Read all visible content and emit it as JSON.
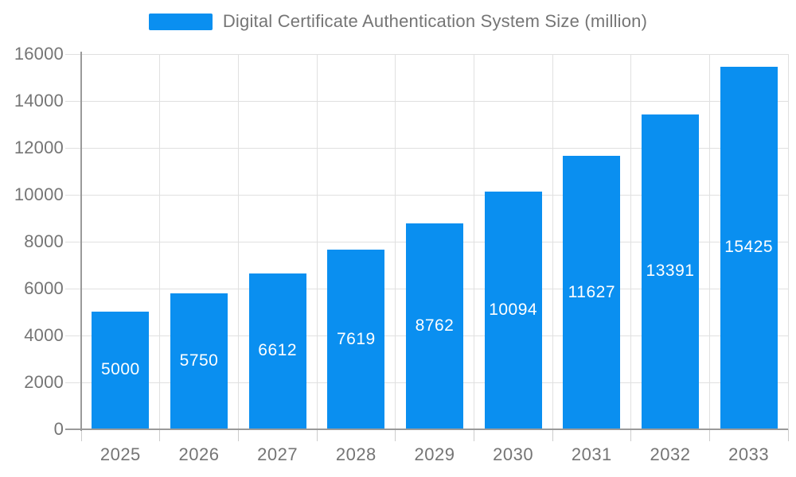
{
  "chart_data": {
    "type": "bar",
    "title": "Digital Certificate Authentication System Size (million)",
    "categories": [
      "2025",
      "2026",
      "2027",
      "2028",
      "2029",
      "2030",
      "2031",
      "2032",
      "2033"
    ],
    "values": [
      5000,
      5750,
      6612,
      7619,
      8762,
      10094,
      11627,
      13391,
      15425
    ],
    "xlabel": "",
    "ylabel": "",
    "ylim": [
      0,
      16000
    ],
    "yticks": [
      0,
      2000,
      4000,
      6000,
      8000,
      10000,
      12000,
      14000,
      16000
    ],
    "grid": true,
    "legend_position": "top",
    "value_label_position": "inside-center"
  },
  "legend": {
    "label": "Digital Certificate Authentication System Size (million)"
  },
  "colors": {
    "bar": "#0a8ff0",
    "grid": "#e0e0e0",
    "axis": "#9a9a9a",
    "tick": "#cccccc",
    "text": "#757575",
    "value_label": "#ffffff",
    "background": "#ffffff"
  }
}
